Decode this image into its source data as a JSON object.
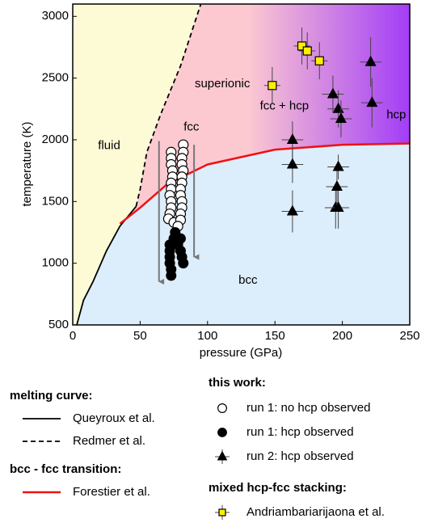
{
  "chart_data": {
    "type": "scatter",
    "x_label": "pressure (GPa)",
    "y_label": "temperature (K)",
    "xlim": [
      0,
      250
    ],
    "ylim": [
      500,
      3100
    ],
    "xticks": [
      0,
      50,
      100,
      150,
      200,
      250
    ],
    "yticks": [
      500,
      1000,
      1500,
      2000,
      2500,
      3000
    ],
    "curves": [
      {
        "name": "Queyroux et al.",
        "color": "#000000",
        "style": "solid",
        "x": [
          3,
          8,
          15,
          25,
          35,
          47
        ],
        "y": [
          500,
          700,
          850,
          1100,
          1300,
          1460
        ]
      },
      {
        "name": "Redmer et al.",
        "color": "#000000",
        "style": "dashed",
        "x": [
          47,
          50,
          55,
          65,
          80,
          95
        ],
        "y": [
          1460,
          1600,
          1900,
          2200,
          2600,
          3100
        ]
      },
      {
        "name": "Forestier et al.",
        "color": "#ee1111",
        "style": "solid",
        "x": [
          35,
          50,
          70,
          100,
          150,
          200,
          250
        ],
        "y": [
          1320,
          1450,
          1640,
          1800,
          1920,
          1960,
          1970
        ]
      }
    ],
    "series": [
      {
        "name": "run 1: no hcp observed",
        "marker": "open-circle",
        "color": "#000000",
        "x": [
          73,
          73,
          73,
          74,
          74,
          73,
          73,
          72,
          73,
          73,
          72,
          71,
          75,
          82,
          82,
          81,
          81,
          82,
          81,
          81,
          80,
          80,
          81,
          81,
          80,
          80,
          78
        ],
        "values": [
          1900,
          1850,
          1800,
          1750,
          1700,
          1650,
          1600,
          1550,
          1500,
          1450,
          1400,
          1360,
          1330,
          1960,
          1900,
          1850,
          1800,
          1750,
          1700,
          1650,
          1600,
          1550,
          1500,
          1450,
          1400,
          1350,
          1300
        ]
      },
      {
        "name": "run 1: hcp observed",
        "marker": "filled-circle",
        "color": "#000000",
        "x": [
          72,
          72,
          72,
          72,
          73,
          73,
          75,
          76,
          78,
          80,
          81,
          80,
          82
        ],
        "values": [
          1150,
          1100,
          1050,
          1000,
          950,
          900,
          1200,
          1250,
          1150,
          1100,
          1050,
          1200,
          1000
        ]
      },
      {
        "name": "run 2: hcp observed",
        "marker": "triangle",
        "color": "#000000",
        "x": [
          163,
          163,
          163,
          195,
          197,
          196,
          197,
          193,
          197,
          199,
          221,
          222
        ],
        "values": [
          2000,
          1800,
          1420,
          1450,
          1450,
          1620,
          1780,
          2370,
          2250,
          2170,
          2630,
          2300
        ],
        "x_err": [
          8,
          8,
          8,
          8,
          8,
          8,
          8,
          8,
          8,
          8,
          8,
          8
        ],
        "y_err": [
          150,
          150,
          170,
          170,
          170,
          150,
          100,
          150,
          150,
          150,
          200,
          200
        ]
      },
      {
        "name": "Andriambariarijaona et al.",
        "marker": "square",
        "color": "#ffee00",
        "x": [
          148,
          170,
          174,
          183
        ],
        "values": [
          2440,
          2760,
          2720,
          2640
        ],
        "x_err": [
          6,
          6,
          6,
          6
        ],
        "y_err": [
          150,
          150,
          150,
          150
        ]
      }
    ],
    "arrows": [
      {
        "x": 64,
        "y_start": 1990,
        "y_end": 850
      },
      {
        "x": 90,
        "y_start": 1960,
        "y_end": 1050
      }
    ],
    "annotations": [
      {
        "text": "fluid",
        "x": 27,
        "y": 1950
      },
      {
        "text": "superionic",
        "x": 111,
        "y": 2450
      },
      {
        "text": "fcc",
        "x": 88,
        "y": 2100
      },
      {
        "text": "fcc + hcp",
        "x": 157,
        "y": 2270
      },
      {
        "text": "hcp",
        "x": 240,
        "y": 2200
      },
      {
        "text": "bcc",
        "x": 130,
        "y": 860
      }
    ],
    "legend_headings": [
      "melting curve:",
      "this work:",
      "bcc - fcc transition:",
      "mixed hcp-fcc stacking:"
    ]
  }
}
